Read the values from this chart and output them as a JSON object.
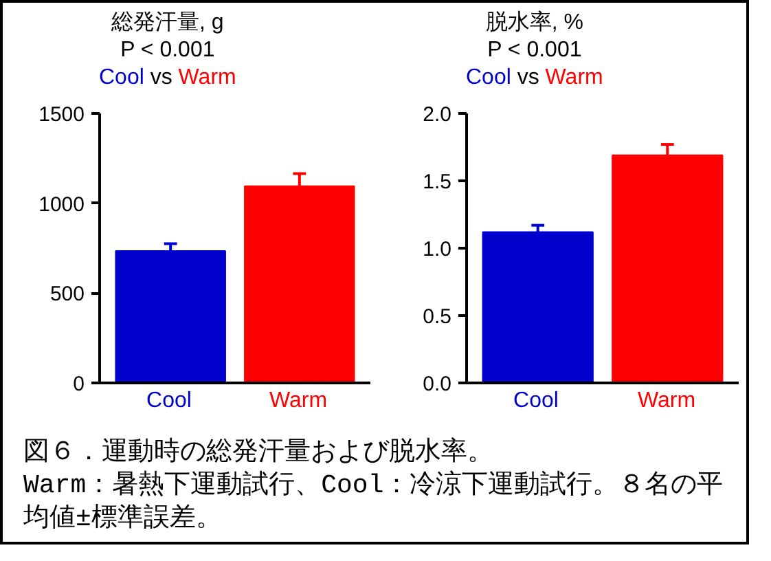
{
  "chart_data": [
    {
      "type": "bar",
      "title": "総発汗量, g",
      "categories": [
        "Cool",
        "Warm"
      ],
      "values": [
        735,
        1095
      ],
      "errors": [
        40,
        70
      ],
      "colors": [
        "#0000cc",
        "#ff0000"
      ],
      "ylim": [
        0,
        1500
      ],
      "yticks": [
        0,
        500,
        1000,
        1500
      ],
      "grid": false,
      "annotations": [
        "P < 0.001",
        "Cool vs Warm"
      ]
    },
    {
      "type": "bar",
      "title": "脱水率, %",
      "categories": [
        "Cool",
        "Warm"
      ],
      "values": [
        1.12,
        1.69
      ],
      "errors": [
        0.05,
        0.08
      ],
      "colors": [
        "#0000cc",
        "#ff0000"
      ],
      "ylim": [
        0,
        2.0
      ],
      "yticks": [
        {
          "value": 0,
          "label": "0.0"
        },
        {
          "value": 0.5,
          "label": "0.5"
        },
        {
          "value": 1.0,
          "label": "1.0"
        },
        {
          "value": 1.5,
          "label": "1.5"
        },
        {
          "value": 2.0,
          "label": "2.0"
        }
      ],
      "grid": false,
      "annotations": [
        "P < 0.001",
        "Cool vs Warm"
      ]
    },
    {
      "type": "other",
      "annotations": [
        "図６．運動時の総発汗量および脱水率。",
        "Warm：暑熱下運動試行、Cool：冷涼下運動試行。８名の平均値±標準誤差。"
      ]
    }
  ]
}
